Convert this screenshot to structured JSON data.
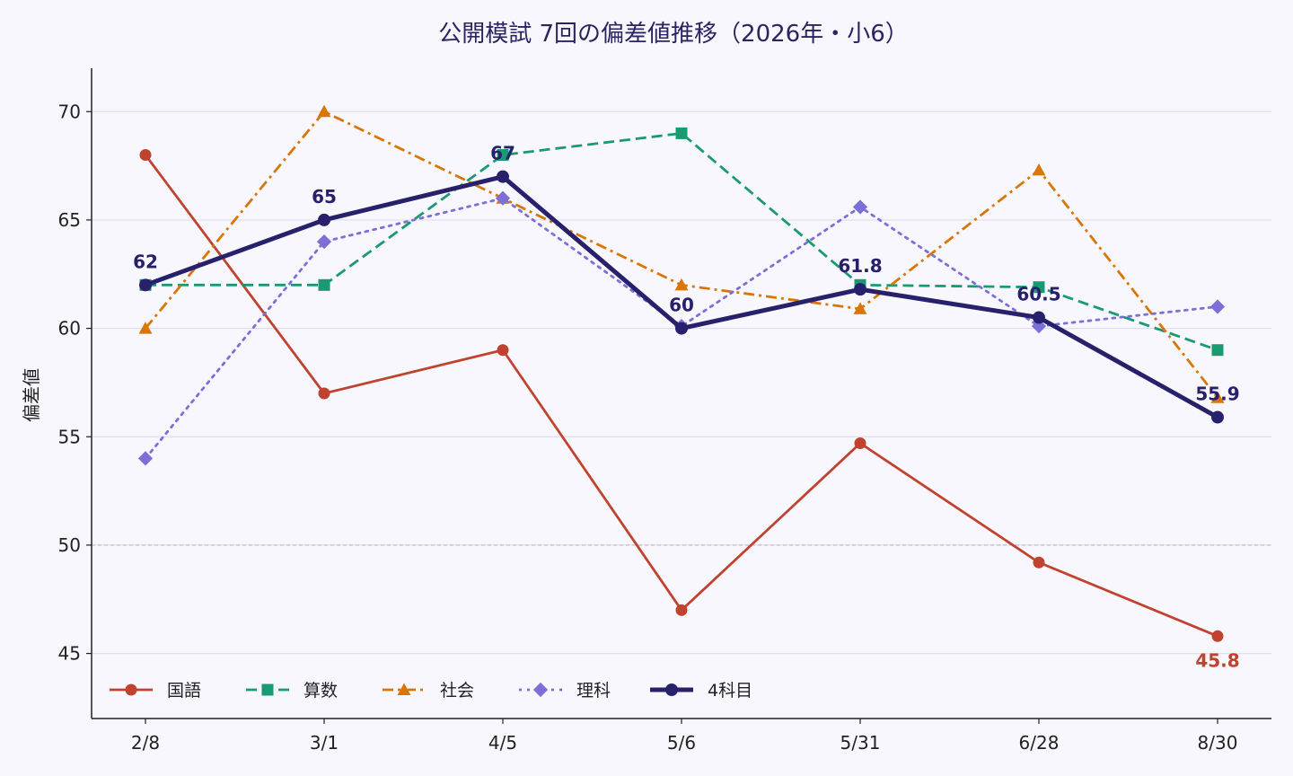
{
  "chart_data": {
    "type": "line",
    "title": "公開模試 7回の偏差値推移（2026年・小6）",
    "xlabel": "",
    "ylabel": "偏差値",
    "categories": [
      "2/8",
      "3/1",
      "4/5",
      "5/6",
      "5/31",
      "6/28",
      "8/30"
    ],
    "ylim": [
      42,
      72
    ],
    "yticks": [
      45,
      50,
      55,
      60,
      65,
      70
    ],
    "grid": true,
    "reference_line": 50,
    "legend_position": "lower-left",
    "series": [
      {
        "name": "国語",
        "values": [
          68,
          57,
          59,
          47,
          54.7,
          49.2,
          45.8
        ],
        "color": "#c0432f",
        "marker": "circle",
        "dash": "solid"
      },
      {
        "name": "算数",
        "values": [
          62,
          62,
          68,
          69,
          62,
          61.9,
          59
        ],
        "color": "#1a9a70",
        "marker": "square",
        "dash": "dashed"
      },
      {
        "name": "社会",
        "values": [
          60,
          70,
          66,
          62,
          60.9,
          67.3,
          56.8
        ],
        "color": "#d87708",
        "marker": "triangle",
        "dash": "dashdot"
      },
      {
        "name": "理科",
        "values": [
          54,
          64,
          66,
          60.1,
          65.6,
          60.1,
          61
        ],
        "color": "#7d6fd8",
        "marker": "diamond",
        "dash": "dotted"
      },
      {
        "name": "4科目",
        "values": [
          62,
          65,
          67,
          60,
          61.8,
          60.5,
          55.9
        ],
        "color": "#27216b",
        "marker": "circle",
        "dash": "solid",
        "bold": true
      }
    ],
    "annotations": [
      {
        "series": "4科目",
        "index": 0,
        "text": "62"
      },
      {
        "series": "4科目",
        "index": 1,
        "text": "65"
      },
      {
        "series": "4科目",
        "index": 2,
        "text": "67"
      },
      {
        "series": "4科目",
        "index": 3,
        "text": "60"
      },
      {
        "series": "4科目",
        "index": 4,
        "text": "61.8"
      },
      {
        "series": "4科目",
        "index": 5,
        "text": "60.5"
      },
      {
        "series": "4科目",
        "index": 6,
        "text": "55.9"
      },
      {
        "series": "国語",
        "index": 6,
        "text": "45.8",
        "below": true
      }
    ]
  }
}
